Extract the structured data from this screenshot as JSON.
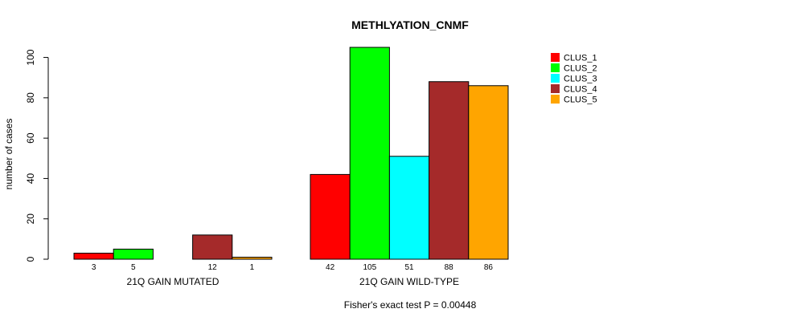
{
  "chart_data": {
    "type": "bar",
    "title": "METHLYATION_CNMF",
    "xlabel": "",
    "ylabel": "number of cases",
    "ylim": [
      0,
      105
    ],
    "yticks": [
      0,
      20,
      40,
      60,
      80,
      100
    ],
    "groups": [
      "21Q GAIN MUTATED",
      "21Q GAIN WILD-TYPE"
    ],
    "series": [
      {
        "name": "CLUS_1",
        "color": "#ff0000",
        "values": [
          3,
          42
        ]
      },
      {
        "name": "CLUS_2",
        "color": "#00ff00",
        "values": [
          5,
          105
        ]
      },
      {
        "name": "CLUS_3",
        "color": "#00ffff",
        "values": [
          0,
          51
        ]
      },
      {
        "name": "CLUS_4",
        "color": "#a52a2a",
        "values": [
          12,
          88
        ]
      },
      {
        "name": "CLUS_5",
        "color": "#ffa500",
        "values": [
          1,
          86
        ]
      }
    ],
    "bar_count_labels": [
      [
        "3",
        "5",
        "",
        "12",
        "1"
      ],
      [
        "42",
        "105",
        "51",
        "88",
        "86"
      ]
    ],
    "legend_position": "top-right",
    "footnote": "Fisher's exact test P = 0.00448"
  }
}
